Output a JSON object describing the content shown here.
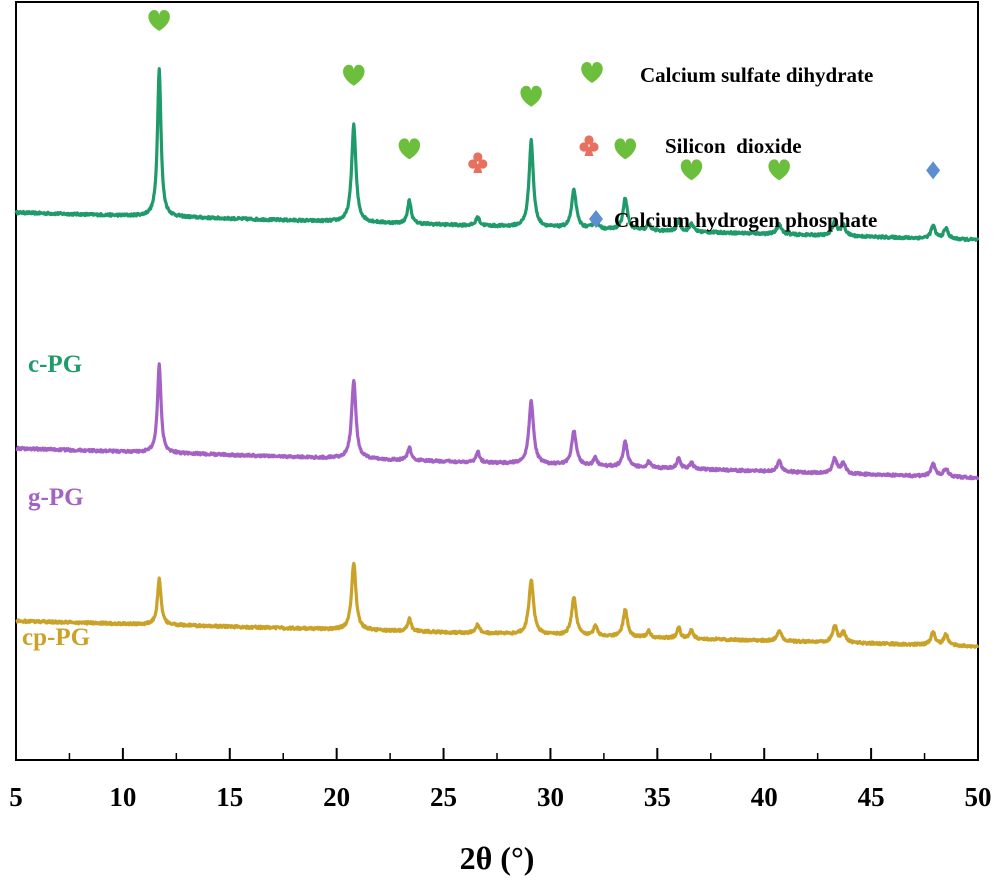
{
  "chart_data": {
    "type": "line",
    "title": "",
    "xlabel": "2θ (°)",
    "ylabel": "",
    "xlim": [
      5,
      50
    ],
    "ylim": [
      0,
      3.6
    ],
    "grid": false,
    "x_ticks": [
      5,
      10,
      15,
      20,
      25,
      30,
      35,
      40,
      45,
      50
    ],
    "x_tick_labels": [
      "5",
      "10",
      "15",
      "20",
      "25",
      "30",
      "35",
      "40",
      "45",
      "50"
    ],
    "legend": {
      "placement": "top-right",
      "entries": [
        {
          "label": "Calcium sulfate dihydrate",
          "marker": "heart",
          "color": "#6cbf3c"
        },
        {
          "label": "Silicon  dioxide",
          "marker": "club",
          "color": "#e8705f"
        },
        {
          "label": "Calcium hydrogen phosphate",
          "marker": "diamond",
          "color": "#5b8fd0"
        }
      ]
    },
    "series": [
      {
        "name": "c-PG",
        "color": "#1f9a6a",
        "baseline": [
          [
            5,
            2.6
          ],
          [
            50,
            2.47
          ]
        ],
        "noise": 0.006,
        "peaks": [
          [
            11.7,
            0.7,
            0.1
          ],
          [
            20.8,
            0.46,
            0.12
          ],
          [
            23.4,
            0.11,
            0.1
          ],
          [
            26.6,
            0.04,
            0.1
          ],
          [
            29.1,
            0.41,
            0.12
          ],
          [
            31.1,
            0.18,
            0.13
          ],
          [
            32.1,
            0.05,
            0.1
          ],
          [
            33.5,
            0.15,
            0.12
          ],
          [
            34.6,
            0.03,
            0.1
          ],
          [
            36.0,
            0.05,
            0.1
          ],
          [
            36.6,
            0.04,
            0.1
          ],
          [
            40.7,
            0.05,
            0.12
          ],
          [
            43.3,
            0.07,
            0.12
          ],
          [
            43.7,
            0.05,
            0.12
          ],
          [
            47.9,
            0.06,
            0.12
          ],
          [
            48.5,
            0.05,
            0.12
          ]
        ]
      },
      {
        "name": "g-PG",
        "color": "#a463c4",
        "baseline": [
          [
            5,
            1.48
          ],
          [
            50,
            1.34
          ]
        ],
        "noise": 0.006,
        "peaks": [
          [
            11.7,
            0.42,
            0.1
          ],
          [
            20.8,
            0.37,
            0.12
          ],
          [
            23.4,
            0.06,
            0.1
          ],
          [
            26.6,
            0.05,
            0.1
          ],
          [
            29.1,
            0.3,
            0.13
          ],
          [
            31.1,
            0.16,
            0.13
          ],
          [
            32.1,
            0.04,
            0.1
          ],
          [
            33.5,
            0.12,
            0.12
          ],
          [
            34.6,
            0.03,
            0.1
          ],
          [
            36.0,
            0.05,
            0.1
          ],
          [
            36.6,
            0.03,
            0.1
          ],
          [
            40.7,
            0.05,
            0.12
          ],
          [
            43.3,
            0.07,
            0.12
          ],
          [
            43.7,
            0.05,
            0.12
          ],
          [
            47.9,
            0.06,
            0.12
          ],
          [
            48.5,
            0.04,
            0.12
          ]
        ]
      },
      {
        "name": "cp-PG",
        "color": "#c9a227",
        "baseline": [
          [
            5,
            0.66
          ],
          [
            50,
            0.54
          ]
        ],
        "noise": 0.006,
        "peaks": [
          [
            11.7,
            0.22,
            0.1
          ],
          [
            20.8,
            0.32,
            0.12
          ],
          [
            23.4,
            0.06,
            0.1
          ],
          [
            26.6,
            0.04,
            0.1
          ],
          [
            29.1,
            0.26,
            0.13
          ],
          [
            31.1,
            0.18,
            0.13
          ],
          [
            32.1,
            0.05,
            0.1
          ],
          [
            33.5,
            0.13,
            0.12
          ],
          [
            34.6,
            0.03,
            0.1
          ],
          [
            36.0,
            0.05,
            0.1
          ],
          [
            36.6,
            0.04,
            0.1
          ],
          [
            40.7,
            0.05,
            0.12
          ],
          [
            43.3,
            0.08,
            0.12
          ],
          [
            43.7,
            0.05,
            0.12
          ],
          [
            47.9,
            0.06,
            0.12
          ],
          [
            48.5,
            0.05,
            0.12
          ]
        ]
      }
    ],
    "annotations": [
      {
        "x": 11.7,
        "y": 3.51,
        "marker": "heart",
        "phase": "Calcium sulfate dihydrate"
      },
      {
        "x": 20.8,
        "y": 3.25,
        "marker": "heart",
        "phase": "Calcium sulfate dihydrate"
      },
      {
        "x": 23.4,
        "y": 2.9,
        "marker": "heart",
        "phase": "Calcium sulfate dihydrate"
      },
      {
        "x": 26.6,
        "y": 2.84,
        "marker": "club",
        "phase": "Silicon dioxide"
      },
      {
        "x": 29.1,
        "y": 3.15,
        "marker": "heart",
        "phase": "Calcium sulfate dihydrate"
      },
      {
        "x": 33.5,
        "y": 2.9,
        "marker": "heart",
        "phase": "Calcium sulfate dihydrate"
      },
      {
        "x": 36.6,
        "y": 2.8,
        "marker": "heart",
        "phase": "Calcium sulfate dihydrate"
      },
      {
        "x": 40.7,
        "y": 2.8,
        "marker": "heart",
        "phase": "Calcium sulfate dihydrate"
      },
      {
        "x": 47.9,
        "y": 2.8,
        "marker": "diamond",
        "phase": "Calcium hydrogen phosphate"
      }
    ]
  }
}
